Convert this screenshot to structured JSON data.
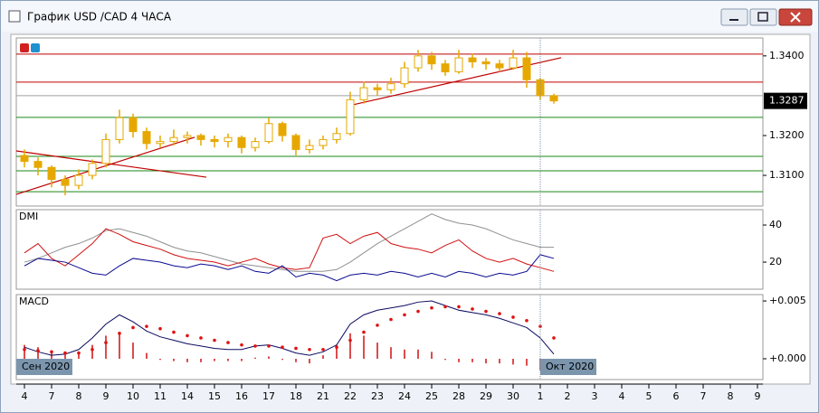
{
  "window": {
    "title": "График USD /CAD  4 ЧАСА"
  },
  "chart_data": [
    {
      "type": "candlestick",
      "xlim": [
        -0.3,
        27.2
      ],
      "ylim": [
        1.3023,
        1.3445
      ],
      "yticks": [
        {
          "value": 1.34,
          "label": "1.3400"
        },
        {
          "value": 1.32,
          "label": "1.3200"
        },
        {
          "value": 1.31,
          "label": "1.3100"
        }
      ],
      "last_price": {
        "value": 1.3287,
        "label": "1.3287"
      },
      "color": "#e6a800",
      "x": [
        0,
        0.5,
        1,
        1.5,
        2,
        2.5,
        3,
        3.5,
        4,
        4.5,
        5,
        5.5,
        6,
        6.5,
        7,
        7.5,
        8,
        8.5,
        9,
        9.5,
        10,
        10.5,
        11,
        11.5,
        12,
        12.5,
        13,
        13.5,
        14,
        14.5,
        15,
        15.5,
        16,
        16.5,
        17,
        17.5,
        18,
        18.5,
        19,
        19.5
      ],
      "open": [
        1.315,
        1.3135,
        1.312,
        1.309,
        1.3075,
        1.31,
        1.313,
        1.319,
        1.3245,
        1.321,
        1.318,
        1.3185,
        1.3195,
        1.32,
        1.319,
        1.3185,
        1.3195,
        1.317,
        1.3185,
        1.323,
        1.32,
        1.3165,
        1.3175,
        1.319,
        1.3205,
        1.329,
        1.332,
        1.3315,
        1.333,
        1.337,
        1.34,
        1.338,
        1.336,
        1.3395,
        1.3385,
        1.338,
        1.337,
        1.3395,
        1.334,
        1.33
      ],
      "high": [
        1.3165,
        1.3145,
        1.3125,
        1.31,
        1.3115,
        1.314,
        1.3205,
        1.3265,
        1.3255,
        1.322,
        1.32,
        1.3215,
        1.321,
        1.3205,
        1.32,
        1.3205,
        1.32,
        1.3195,
        1.3245,
        1.3235,
        1.3205,
        1.319,
        1.32,
        1.322,
        1.331,
        1.3335,
        1.333,
        1.3345,
        1.3385,
        1.3415,
        1.341,
        1.339,
        1.3415,
        1.3405,
        1.3395,
        1.339,
        1.3415,
        1.341,
        1.3345,
        1.3305
      ],
      "low": [
        1.312,
        1.31,
        1.307,
        1.305,
        1.3065,
        1.309,
        1.312,
        1.318,
        1.3195,
        1.3165,
        1.317,
        1.3175,
        1.318,
        1.3175,
        1.317,
        1.317,
        1.3155,
        1.316,
        1.318,
        1.3185,
        1.315,
        1.3155,
        1.3165,
        1.318,
        1.32,
        1.328,
        1.33,
        1.3305,
        1.332,
        1.336,
        1.3365,
        1.335,
        1.3355,
        1.337,
        1.3365,
        1.336,
        1.3365,
        1.332,
        1.329,
        1.328
      ],
      "close": [
        1.3135,
        1.312,
        1.309,
        1.3075,
        1.31,
        1.313,
        1.319,
        1.3245,
        1.321,
        1.318,
        1.3185,
        1.3195,
        1.32,
        1.319,
        1.3185,
        1.3195,
        1.317,
        1.3185,
        1.323,
        1.32,
        1.3165,
        1.3175,
        1.319,
        1.3205,
        1.329,
        1.332,
        1.3315,
        1.333,
        1.337,
        1.34,
        1.338,
        1.336,
        1.3395,
        1.3385,
        1.338,
        1.337,
        1.3395,
        1.334,
        1.33,
        1.3287
      ],
      "levels": [
        {
          "value": 1.34045,
          "color": "#c00000"
        },
        {
          "value": 1.33341,
          "color": "#c00000"
        },
        {
          "value": 1.33,
          "color": "#a0a0a0"
        },
        {
          "value": 1.32455,
          "color": "#1a8a1a"
        },
        {
          "value": 1.31477,
          "color": "#1a8a1a"
        },
        {
          "value": 1.31114,
          "color": "#1a8a1a"
        },
        {
          "value": 1.30591,
          "color": "#1a8a1a"
        }
      ],
      "trend_lines": [
        {
          "x": [
            -0.3,
            6.7
          ],
          "y": [
            1.31614,
            1.30955
          ],
          "color": "#c00000"
        },
        {
          "x": [
            -0.3,
            6.27
          ],
          "y": [
            1.30523,
            1.31955
          ],
          "color": "#c00000"
        },
        {
          "x": [
            12.1,
            19.77
          ],
          "y": [
            1.32773,
            1.33955
          ],
          "color": "#c00000"
        }
      ]
    },
    {
      "type": "line",
      "title": "DMI",
      "xlim": [
        -0.3,
        27.2
      ],
      "ylim": [
        5.4,
        48.3
      ],
      "yticks": [
        40,
        20
      ],
      "x": [
        0,
        0.5,
        1,
        1.5,
        2,
        2.5,
        3,
        3.5,
        4,
        4.5,
        5,
        5.5,
        6,
        6.5,
        7,
        7.5,
        8,
        8.5,
        9,
        9.5,
        10,
        10.5,
        11,
        11.5,
        12,
        12.5,
        13,
        13.5,
        14,
        14.5,
        15,
        15.5,
        16,
        16.5,
        17,
        17.5,
        18,
        18.5,
        19,
        19.5
      ],
      "series": [
        {
          "color": "#909090",
          "values": [
            20,
            22,
            25,
            28,
            30,
            33,
            37,
            38,
            36,
            34,
            31,
            28,
            26,
            25,
            23,
            21,
            19,
            18,
            17,
            16,
            15,
            15,
            15,
            16,
            20,
            25,
            30,
            34,
            38,
            42,
            46,
            43,
            41,
            40,
            38,
            35,
            32,
            30,
            28,
            28
          ]
        },
        {
          "color": "#d01010",
          "values": [
            25,
            30,
            22,
            18,
            24,
            30,
            38,
            35,
            31,
            29,
            27,
            24,
            22,
            21,
            20,
            18,
            20,
            22,
            19,
            17,
            16,
            17,
            33,
            35,
            30,
            34,
            36,
            30,
            28,
            27,
            25,
            29,
            32,
            26,
            22,
            20,
            22,
            19,
            17,
            15
          ]
        },
        {
          "color": "#0a0a90",
          "values": [
            18,
            22,
            21,
            20,
            17,
            14,
            13,
            18,
            22,
            21,
            20,
            18,
            17,
            19,
            18,
            16,
            18,
            15,
            14,
            18,
            12,
            14,
            13,
            10,
            13,
            14,
            13,
            15,
            14,
            12,
            14,
            12,
            15,
            14,
            12,
            14,
            13,
            15,
            24,
            22
          ]
        }
      ]
    },
    {
      "type": "line",
      "title": "MACD",
      "xlim": [
        -0.3,
        27.2
      ],
      "ylim": [
        -0.0018,
        0.00555
      ],
      "yticks": [
        {
          "value": 0.005,
          "label": "+0.005"
        },
        {
          "value": 0,
          "label": "+0.000"
        }
      ],
      "xticks": [
        {
          "value": 0,
          "label": "4"
        },
        {
          "value": 1,
          "label": "7"
        },
        {
          "value": 2,
          "label": "8"
        },
        {
          "value": 3,
          "label": "9"
        },
        {
          "value": 4,
          "label": "10"
        },
        {
          "value": 5,
          "label": "11"
        },
        {
          "value": 6,
          "label": "14"
        },
        {
          "value": 7,
          "label": "15"
        },
        {
          "value": 8,
          "label": "16"
        },
        {
          "value": 9,
          "label": "17"
        },
        {
          "value": 10,
          "label": "18"
        },
        {
          "value": 11,
          "label": "21"
        },
        {
          "value": 12,
          "label": "22"
        },
        {
          "value": 13,
          "label": "23"
        },
        {
          "value": 14,
          "label": "24"
        },
        {
          "value": 15,
          "label": "25"
        },
        {
          "value": 16,
          "label": "28"
        },
        {
          "value": 17,
          "label": "29"
        },
        {
          "value": 18,
          "label": "30"
        },
        {
          "value": 19,
          "label": "1"
        },
        {
          "value": 20,
          "label": "2"
        },
        {
          "value": 21,
          "label": "3"
        },
        {
          "value": 22,
          "label": "4"
        },
        {
          "value": 23,
          "label": "5"
        },
        {
          "value": 24,
          "label": "6"
        },
        {
          "value": 25,
          "label": "7"
        },
        {
          "value": 26,
          "label": "8"
        },
        {
          "value": 27,
          "label": "9"
        }
      ],
      "month_labels": [
        "Сен 2020",
        "Окт 2020"
      ],
      "separator": 19,
      "x": [
        0,
        0.5,
        1,
        1.5,
        2,
        2.5,
        3,
        3.5,
        4,
        4.5,
        5,
        5.5,
        6,
        6.5,
        7,
        7.5,
        8,
        8.5,
        9,
        9.5,
        10,
        10.5,
        11,
        11.5,
        12,
        12.5,
        13,
        13.5,
        14,
        14.5,
        15,
        15.5,
        16,
        16.5,
        17,
        17.5,
        18,
        18.5,
        19,
        19.5
      ],
      "series": [
        {
          "type": "bar",
          "color": "#d01010",
          "values": [
            0.0012,
            0.001,
            0.0007,
            0.0004,
            0.0006,
            0.0012,
            0.002,
            0.0022,
            0.0014,
            0.0005,
            -0.0001,
            -0.0002,
            -0.0003,
            -0.0003,
            -0.0002,
            -0.0002,
            -0.0002,
            0.0001,
            0.0002,
            -0.0001,
            -0.0003,
            -0.0004,
            0.0003,
            0.0012,
            0.0022,
            0.002,
            0.0014,
            0.001,
            0.0008,
            0.0008,
            0.0006,
            -0.0001,
            -0.0003,
            -0.0003,
            -0.0004,
            -0.0004,
            -0.0005,
            -0.0006,
            -0.001,
            -0.0014
          ]
        },
        {
          "type": "line",
          "color": "#0a0a60",
          "values": [
            0.001,
            0.0006,
            0.0003,
            0.0004,
            0.0008,
            0.0018,
            0.003,
            0.0038,
            0.0032,
            0.0024,
            0.0019,
            0.0016,
            0.0013,
            0.0011,
            0.0009,
            0.0008,
            0.0008,
            0.0011,
            0.0012,
            0.0009,
            0.0005,
            0.0003,
            0.0006,
            0.0012,
            0.003,
            0.0038,
            0.0042,
            0.0044,
            0.0046,
            0.0049,
            0.005,
            0.0046,
            0.0042,
            0.004,
            0.0038,
            0.0035,
            0.0031,
            0.0027,
            0.0018,
            0.0004
          ]
        },
        {
          "type": "dots",
          "color": "#e01010",
          "values": [
            0.0008,
            0.0007,
            0.0006,
            0.0005,
            0.0005,
            0.0008,
            0.0014,
            0.0022,
            0.0027,
            0.0028,
            0.0026,
            0.0023,
            0.002,
            0.0018,
            0.0016,
            0.0014,
            0.0012,
            0.0011,
            0.0011,
            0.001,
            0.0009,
            0.0008,
            0.0008,
            0.001,
            0.0016,
            0.0023,
            0.0029,
            0.0034,
            0.0038,
            0.0041,
            0.0044,
            0.0045,
            0.0045,
            0.0043,
            0.0041,
            0.0039,
            0.0036,
            0.0033,
            0.0028,
            0.0018
          ]
        }
      ]
    }
  ]
}
